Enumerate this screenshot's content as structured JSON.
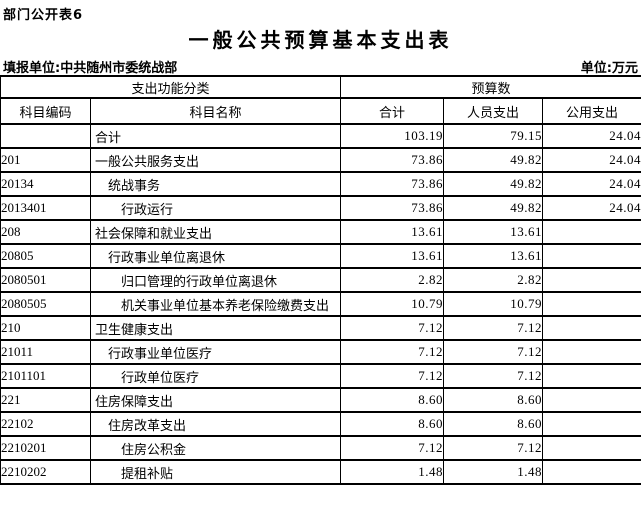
{
  "page": {
    "corner_label": "部门公开表6",
    "title": "一般公共预算基本支出表",
    "reporting_unit_label": "填报单位:",
    "reporting_unit_value": "中共随州市委统战部",
    "unit_note": "单位:万元"
  },
  "table": {
    "header": {
      "function_group": "支出功能分类",
      "budget_group": "预算数",
      "col_code": "科目编码",
      "col_name": "科目名称",
      "col_total": "合计",
      "col_personnel": "人员支出",
      "col_public": "公用支出"
    },
    "rows": [
      {
        "code": "",
        "name": "合计",
        "indent": 0,
        "total": "103.19",
        "personnel": "79.15",
        "public": "24.04"
      },
      {
        "code": "201",
        "name": "一般公共服务支出",
        "indent": 0,
        "total": "73.86",
        "personnel": "49.82",
        "public": "24.04"
      },
      {
        "code": "20134",
        "name": "统战事务",
        "indent": 1,
        "total": "73.86",
        "personnel": "49.82",
        "public": "24.04"
      },
      {
        "code": "2013401",
        "name": "行政运行",
        "indent": 2,
        "total": "73.86",
        "personnel": "49.82",
        "public": "24.04"
      },
      {
        "code": "208",
        "name": "社会保障和就业支出",
        "indent": 0,
        "total": "13.61",
        "personnel": "13.61",
        "public": ""
      },
      {
        "code": "20805",
        "name": "行政事业单位离退休",
        "indent": 1,
        "total": "13.61",
        "personnel": "13.61",
        "public": ""
      },
      {
        "code": "2080501",
        "name": "归口管理的行政单位离退休",
        "indent": 2,
        "total": "2.82",
        "personnel": "2.82",
        "public": ""
      },
      {
        "code": "2080505",
        "name": "机关事业单位基本养老保险缴费支出",
        "indent": 2,
        "total": "10.79",
        "personnel": "10.79",
        "public": ""
      },
      {
        "code": "210",
        "name": "卫生健康支出",
        "indent": 0,
        "total": "7.12",
        "personnel": "7.12",
        "public": ""
      },
      {
        "code": "21011",
        "name": "行政事业单位医疗",
        "indent": 1,
        "total": "7.12",
        "personnel": "7.12",
        "public": ""
      },
      {
        "code": "2101101",
        "name": "行政单位医疗",
        "indent": 2,
        "total": "7.12",
        "personnel": "7.12",
        "public": ""
      },
      {
        "code": "221",
        "name": "住房保障支出",
        "indent": 0,
        "total": "8.60",
        "personnel": "8.60",
        "public": ""
      },
      {
        "code": "22102",
        "name": "住房改革支出",
        "indent": 1,
        "total": "8.60",
        "personnel": "8.60",
        "public": ""
      },
      {
        "code": "2210201",
        "name": "住房公积金",
        "indent": 2,
        "total": "7.12",
        "personnel": "7.12",
        "public": ""
      },
      {
        "code": "2210202",
        "name": "提租补贴",
        "indent": 2,
        "total": "1.48",
        "personnel": "1.48",
        "public": ""
      }
    ]
  }
}
